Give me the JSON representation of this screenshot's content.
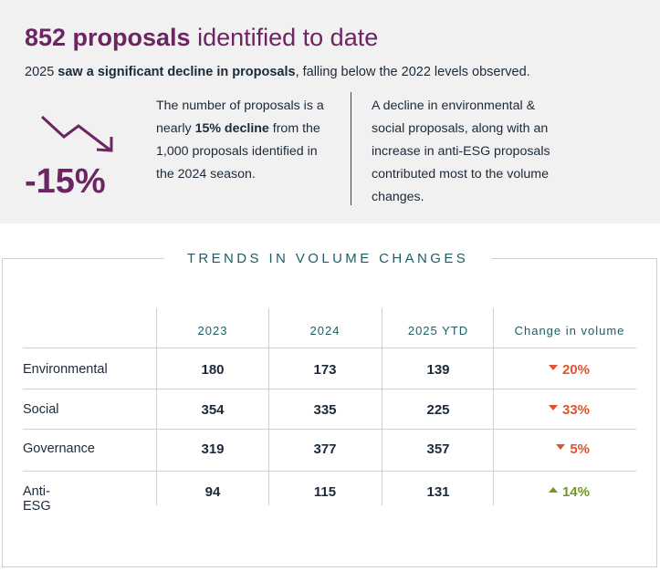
{
  "summary": {
    "headline_bold": "852 proposals",
    "headline_rest": " identified to date",
    "sub_year": "2025 ",
    "sub_bold": "saw a significant decline in proposals",
    "sub_rest": ", falling below the 2022 levels observed.",
    "percent": "-15%",
    "col1_a": "The number of proposals is a nearly ",
    "col1_bold": "15% decline",
    "col1_b": " from the 1,000 proposals identified in the 2024 season.",
    "col2": "A decline in environmental & social proposals, along with an increase in anti-ESG proposals contributed most to the volume changes.",
    "arrow_icon": "trend-down-arrow",
    "accent_color": "#6d2463"
  },
  "trends": {
    "title": "TRENDS IN VOLUME CHANGES",
    "headers": [
      "2023",
      "2024",
      "2025 YTD",
      "Change in volume"
    ],
    "rows": [
      {
        "label": "Environmental",
        "v2023": "180",
        "v2024": "173",
        "v2025": "139",
        "change": "20%",
        "direction": "down"
      },
      {
        "label": "Social",
        "v2023": "354",
        "v2024": "335",
        "v2025": "225",
        "change": "33%",
        "direction": "down"
      },
      {
        "label": "Governance",
        "v2023": "319",
        "v2024": "377",
        "v2025": "357",
        "change": "5%",
        "direction": "down"
      },
      {
        "label": "Anti-ESG",
        "v2023": "94",
        "v2024": "115",
        "v2025": "131",
        "change": "14%",
        "direction": "up"
      }
    ],
    "down_color": "#e0522c",
    "up_color": "#6f9a1f"
  }
}
